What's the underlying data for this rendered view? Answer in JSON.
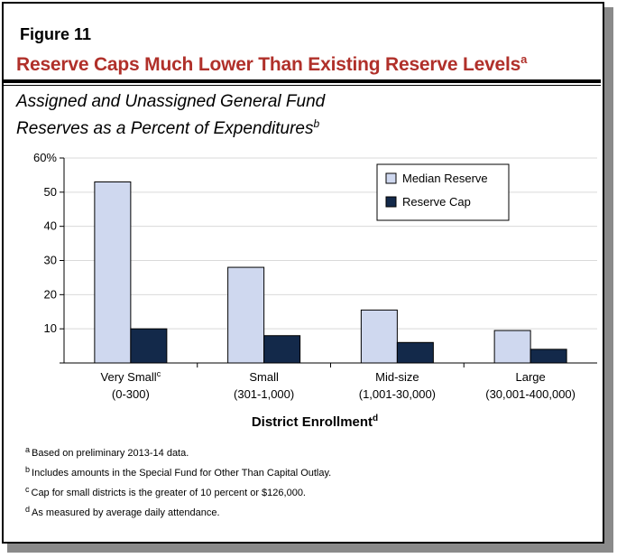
{
  "figure": {
    "label": "Figure 11",
    "title": "Reserve Caps Much Lower Than Existing Reserve Levels",
    "title_sup": "a",
    "subtitle_line1": "Assigned and Unassigned General Fund",
    "subtitle_line2": "Reserves as a Percent of Expenditures",
    "subtitle_sup": "b",
    "title_color": "#b0302a"
  },
  "chart_data": {
    "type": "bar",
    "categories": [
      {
        "name": "Very Small",
        "sup": "c",
        "range": "(0-300)"
      },
      {
        "name": "Small",
        "sup": "",
        "range": "(301-1,000)"
      },
      {
        "name": "Mid-size",
        "sup": "",
        "range": "(1,001-30,000)"
      },
      {
        "name": "Large",
        "sup": "",
        "range": "(30,001-400,000)"
      }
    ],
    "series": [
      {
        "name": "Median Reserve",
        "values": [
          53,
          28,
          15.5,
          9.5
        ],
        "color": "#cfd8ef"
      },
      {
        "name": "Reserve Cap",
        "values": [
          10,
          8,
          6,
          4
        ],
        "color": "#13294a"
      }
    ],
    "xlabel": "District Enrollment",
    "xlabel_sup": "d",
    "ylim": [
      0,
      60
    ],
    "yticks": [
      "0",
      "10",
      "20",
      "30",
      "40",
      "50",
      "60%"
    ],
    "grid": true,
    "legend_position": "top-right"
  },
  "notes": [
    {
      "sup": "a",
      "text": "Based on preliminary 2013-14 data."
    },
    {
      "sup": "b",
      "text": "Includes amounts in the Special Fund for Other Than Capital Outlay."
    },
    {
      "sup": "c",
      "text": "Cap for small districts is the greater of 10 percent or $126,000."
    },
    {
      "sup": "d",
      "text": "As measured by average daily attendance."
    }
  ]
}
